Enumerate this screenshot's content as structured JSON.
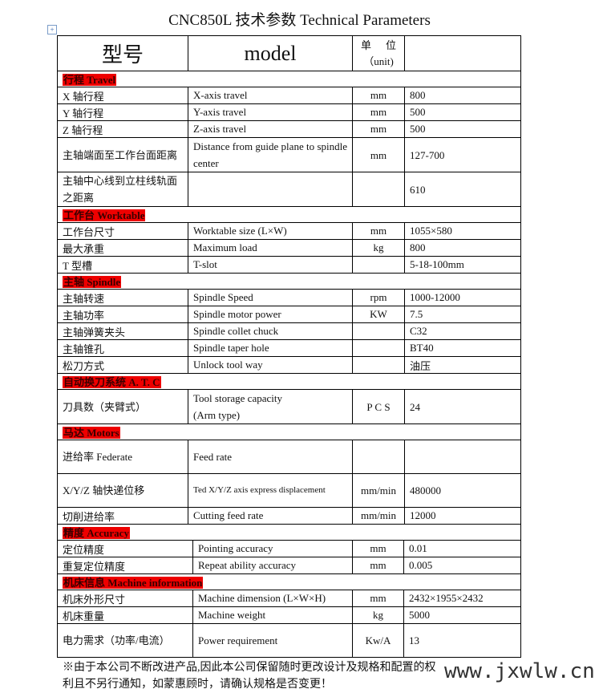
{
  "title": "CNC850L 技术参数 Technical    Parameters",
  "header": {
    "cn": "型号",
    "en": "model",
    "unit_cn": "单  位",
    "unit_en": "（unit)"
  },
  "sections": [
    {
      "title": "行程 Travel",
      "rows": [
        {
          "cn": "X 轴行程",
          "en": "X-axis travel",
          "unit": "mm",
          "value": "800"
        },
        {
          "cn": "Y 轴行程",
          "en": "Y-axis travel",
          "unit": "mm",
          "value": "500"
        },
        {
          "cn": "Z 轴行程",
          "en": "Z-axis travel",
          "unit": "mm",
          "value": "500"
        },
        {
          "cn": "主轴端面至工作台面距离",
          "en": "Distance from guide plane to spindle center",
          "unit": "mm",
          "value": "127-700"
        },
        {
          "cn": "主轴中心线到立柱线轨面之距离",
          "en": "",
          "unit": "",
          "value": "610"
        }
      ]
    },
    {
      "title": "工作台 Worktable",
      "rows": [
        {
          "cn": "工作台尺寸",
          "en": "Worktable size (L×W)",
          "unit": "mm",
          "value": "1055×580"
        },
        {
          "cn": "最大承重",
          "en": "Maximum load",
          "unit": "kg",
          "value": "800"
        },
        {
          "cn": "T 型槽",
          "en": "T-slot",
          "unit": "",
          "value": "5-18-100mm"
        }
      ]
    },
    {
      "title": "主轴 Spindle",
      "rows": [
        {
          "cn": "主轴转速",
          "en": "Spindle Speed",
          "unit": "rpm",
          "value": "1000-12000"
        },
        {
          "cn": "主轴功率",
          "en": "Spindle motor power",
          "unit": "KW",
          "value": "7.5"
        },
        {
          "cn": "主轴弹簧夹头",
          "en": "Spindle collet chuck",
          "unit": "",
          "value": "C32"
        },
        {
          "cn": "主轴锥孔",
          "en": "Spindle taper hole",
          "unit": "",
          "value": "BT40"
        },
        {
          "cn": "松刀方式",
          "en": "Unlock tool way",
          "unit": "",
          "value": "油压"
        }
      ]
    },
    {
      "title": "自动换刀系统 A. T. C",
      "rows": [
        {
          "cn": "刀具数（夹臂式）",
          "en": "Tool storage capacity",
          "en2": "(Arm type)",
          "unit": "P C S",
          "value": "24"
        }
      ]
    },
    {
      "title": "马达 Motors",
      "rows": [
        {
          "cn": "进给率 Federate",
          "en": "Feed rate",
          "unit": "",
          "value": ""
        },
        {
          "cn": "X/Y/Z 轴快递位移",
          "en": "Ted X/Y/Z axis  express  displacement",
          "unit": "mm/min",
          "value": "480000"
        },
        {
          "cn": "切削进给率",
          "en": "Cutting feed rate",
          "unit": "mm/min",
          "value": "12000"
        }
      ]
    },
    {
      "title": "精度 Accuracy",
      "rows": [
        {
          "cn": "定位精度",
          "en": "Pointing accuracy",
          "unit": "mm",
          "value": "0.01"
        },
        {
          "cn": "重复定位精度",
          "en": "Repeat ability accuracy",
          "unit": "mm",
          "value": "0.005"
        }
      ]
    },
    {
      "title": "机床信息 Machine information",
      "rows": [
        {
          "cn": "机床外形尺寸",
          "en": "Machine dimension (L×W×H)",
          "unit": "mm",
          "value": "2432×1955×2432"
        },
        {
          "cn": "机床重量",
          "en": "Machine weight",
          "unit": "kg",
          "value": "5000"
        },
        {
          "cn": "电力需求（功率/电流）",
          "en": "Power requirement",
          "unit": "Kw/A",
          "value": "13"
        }
      ]
    }
  ],
  "note": "※由于本公司不断改进产品,因此本公司保留随时更改设计及规格和配置的权利且不另行通知，如蒙惠顾时，请确认规格是否变更！",
  "watermark": "www.jxwlw.cn",
  "colors": {
    "section_highlight": "#ee0000",
    "border": "#000000"
  }
}
